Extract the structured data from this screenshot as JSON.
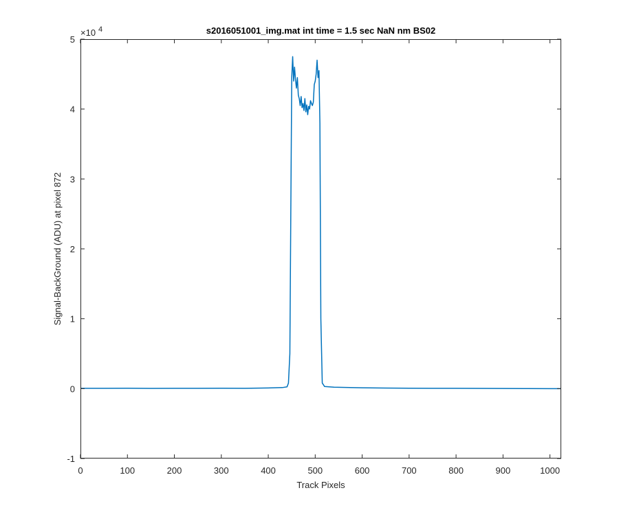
{
  "figure": {
    "background": "#ffffff"
  },
  "chart_data": {
    "type": "line",
    "title": "s2016051001_img.mat int time = 1.5 sec  NaN nm BS02",
    "xlabel": "Track Pixels",
    "ylabel": "Signal-BackGround (ADU) at pixel 872",
    "xlim": [
      0,
      1024
    ],
    "ylim": [
      -10000,
      50000
    ],
    "y_multiplier_text": "×10",
    "y_multiplier_exponent": "4",
    "x_ticks": [
      0,
      100,
      200,
      300,
      400,
      500,
      600,
      700,
      800,
      900,
      1000
    ],
    "x_tick_labels": [
      "0",
      "100",
      "200",
      "300",
      "400",
      "500",
      "600",
      "700",
      "800",
      "900",
      "1000"
    ],
    "y_ticks": [
      -10000,
      0,
      10000,
      20000,
      30000,
      40000,
      50000
    ],
    "y_tick_labels": [
      "-1",
      "0",
      "1",
      "2",
      "3",
      "4",
      "5"
    ],
    "grid": false,
    "box": true,
    "series": [
      {
        "color": "#0072bd",
        "x": [
          0,
          50,
          100,
          150,
          200,
          250,
          300,
          350,
          400,
          430,
          440,
          443,
          446,
          448,
          450,
          452,
          454,
          456,
          458,
          460,
          462,
          464,
          466,
          468,
          470,
          472,
          474,
          476,
          478,
          480,
          482,
          484,
          486,
          488,
          490,
          492,
          494,
          496,
          498,
          500,
          502,
          504,
          506,
          508,
          510,
          512,
          515,
          520,
          540,
          600,
          650,
          700,
          750,
          800,
          850,
          900,
          950,
          1000,
          1024
        ],
        "y": [
          50,
          40,
          60,
          30,
          50,
          40,
          60,
          50,
          100,
          150,
          250,
          800,
          5000,
          25000,
          44500,
          47500,
          44000,
          46000,
          44200,
          43000,
          44500,
          42000,
          41500,
          40500,
          41800,
          40200,
          40800,
          39800,
          41500,
          39600,
          40600,
          39200,
          40400,
          40000,
          41200,
          40800,
          40500,
          41000,
          43500,
          44000,
          45000,
          47000,
          44500,
          45500,
          38000,
          10000,
          800,
          300,
          200,
          120,
          80,
          60,
          50,
          40,
          30,
          20,
          10,
          0,
          0
        ]
      }
    ]
  }
}
